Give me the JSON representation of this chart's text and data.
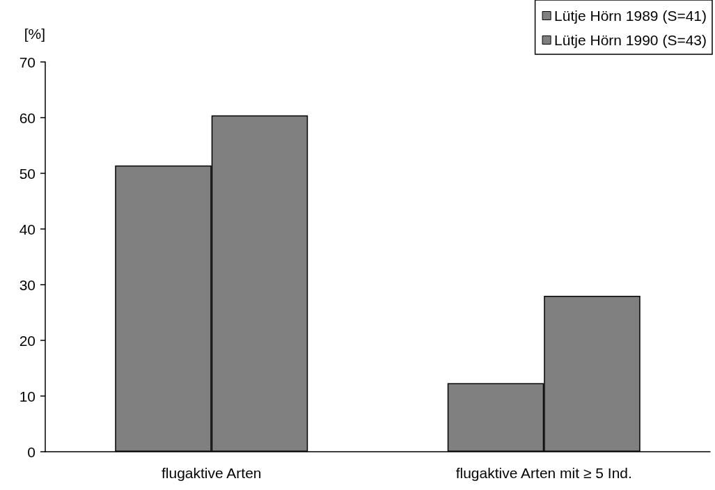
{
  "chart_data": {
    "type": "bar",
    "ylabel": "[%]",
    "categories": [
      "flugaktive Arten",
      "flugaktive Arten mit ≥ 5 Ind."
    ],
    "series": [
      {
        "name": "Lütje Hörn 1989 (S=41)",
        "color": "#808080",
        "values": [
          51.4,
          12.3
        ]
      },
      {
        "name": "Lütje Hörn 1990 (S=43)",
        "color": "#808080",
        "values": [
          60.4,
          28
        ]
      }
    ],
    "ylim": [
      0,
      70
    ],
    "yticks": [
      0,
      10,
      20,
      30,
      40,
      50,
      60,
      70
    ],
    "grid": false,
    "legend": "top right"
  }
}
